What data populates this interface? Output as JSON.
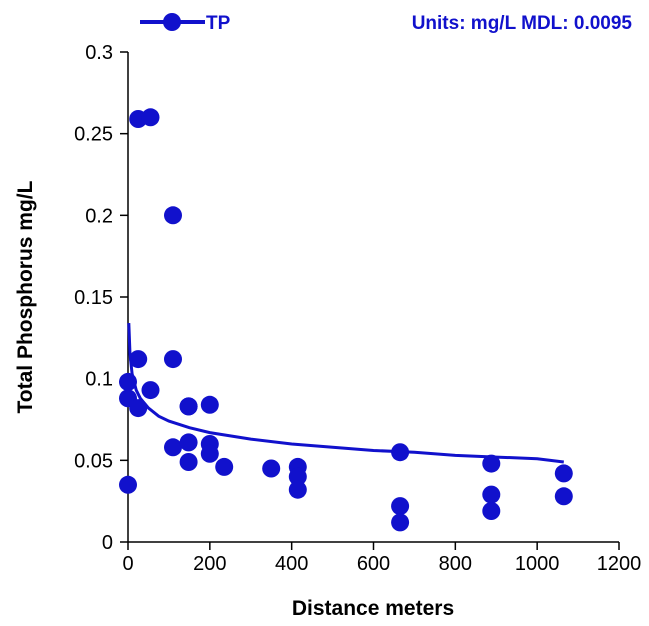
{
  "chart_data": {
    "type": "scatter",
    "title": "",
    "xlabel": "Distance meters",
    "ylabel": "Total Phosphorus mg/L",
    "xlim": [
      0,
      1200
    ],
    "ylim": [
      0,
      0.3
    ],
    "x_ticks": [
      "0",
      "200",
      "400",
      "600",
      "800",
      "1000",
      "1200"
    ],
    "y_ticks": [
      "0",
      "0.05",
      "0.1",
      "0.15",
      "0.2",
      "0.25",
      "0.3"
    ],
    "x_tick_values": [
      0,
      200,
      400,
      600,
      800,
      1000,
      1200
    ],
    "y_tick_values": [
      0,
      0.05,
      0.1,
      0.15,
      0.2,
      0.25,
      0.3
    ],
    "grid": false,
    "legend_position": "top-left",
    "annotation": "Units: mg/L MDL: 0.0095",
    "color": "#1111cc",
    "series": [
      {
        "name": "TP",
        "x": [
          0,
          0,
          0,
          25,
          25,
          25,
          55,
          55,
          110,
          110,
          110,
          148,
          148,
          148,
          148,
          200,
          200,
          200,
          235,
          350,
          415,
          415,
          415,
          665,
          665,
          665,
          888,
          888,
          888,
          1065,
          1065
        ],
        "y": [
          0.035,
          0.088,
          0.098,
          0.259,
          0.112,
          0.082,
          0.26,
          0.093,
          0.2,
          0.112,
          0.058,
          0.083,
          0.061,
          0.049,
          0.083,
          0.084,
          0.06,
          0.054,
          0.046,
          0.045,
          0.046,
          0.04,
          0.032,
          0.055,
          0.022,
          0.012,
          0.048,
          0.029,
          0.019,
          0.042,
          0.028
        ]
      }
    ],
    "trendline": {
      "x": [
        2,
        5,
        10,
        20,
        30,
        50,
        75,
        100,
        150,
        200,
        300,
        400,
        500,
        600,
        700,
        800,
        900,
        1000,
        1065
      ],
      "y": [
        0.134,
        0.115,
        0.103,
        0.093,
        0.088,
        0.082,
        0.077,
        0.074,
        0.07,
        0.067,
        0.063,
        0.06,
        0.058,
        0.056,
        0.055,
        0.053,
        0.052,
        0.051,
        0.049
      ]
    }
  }
}
